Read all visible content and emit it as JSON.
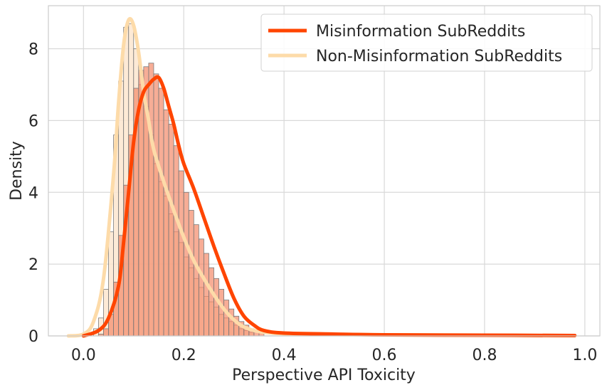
{
  "chart_data": {
    "type": "histogram+kde",
    "xlabel": "Perspective API Toxicity",
    "ylabel": "Density",
    "xlim": [
      -0.07,
      1.03
    ],
    "ylim": [
      0,
      9.2
    ],
    "xticks": [
      0.0,
      0.2,
      0.4,
      0.6,
      0.8,
      1.0
    ],
    "xtick_labels": [
      "0.0",
      "0.2",
      "0.4",
      "0.6",
      "0.8",
      "1.0"
    ],
    "yticks": [
      0,
      2,
      4,
      6,
      8
    ],
    "ytick_labels": [
      "0",
      "2",
      "4",
      "6",
      "8"
    ],
    "grid": true,
    "legend_position": "top-right",
    "bin_width": 0.01,
    "series": [
      {
        "name": "Non-Misinformation SubReddits",
        "line_color": "#FDDBA9",
        "bar_color": "#FDE6CF",
        "bin_starts": [
          0.02,
          0.03,
          0.04,
          0.05,
          0.06,
          0.07,
          0.08,
          0.09,
          0.1,
          0.11,
          0.12,
          0.13,
          0.14,
          0.15,
          0.16,
          0.17,
          0.18,
          0.19,
          0.2,
          0.21,
          0.22,
          0.23,
          0.24,
          0.25,
          0.26,
          0.27,
          0.28,
          0.29,
          0.3,
          0.31,
          0.32,
          0.33
        ],
        "densities": [
          0.2,
          0.5,
          1.3,
          2.9,
          5.6,
          7.1,
          8.6,
          8.7,
          8.0,
          7.0,
          6.4,
          5.6,
          4.8,
          4.3,
          3.9,
          3.4,
          2.9,
          2.6,
          2.2,
          1.9,
          1.6,
          1.35,
          1.1,
          0.95,
          0.8,
          0.6,
          0.5,
          0.4,
          0.3,
          0.2,
          0.15,
          0.1
        ],
        "kde_x": [
          -0.03,
          0.0,
          0.02,
          0.04,
          0.06,
          0.07,
          0.08,
          0.09,
          0.1,
          0.11,
          0.12,
          0.13,
          0.14,
          0.16,
          0.18,
          0.2,
          0.22,
          0.24,
          0.26,
          0.28,
          0.3,
          0.32,
          0.35,
          0.4,
          0.5,
          0.6,
          0.8,
          0.98
        ],
        "kde_y": [
          0.0,
          0.05,
          0.4,
          1.6,
          4.5,
          6.5,
          8.1,
          8.8,
          8.65,
          7.9,
          6.8,
          6.0,
          5.2,
          4.3,
          3.5,
          2.75,
          2.1,
          1.6,
          1.15,
          0.75,
          0.45,
          0.25,
          0.12,
          0.06,
          0.04,
          0.03,
          0.02,
          0.01
        ]
      },
      {
        "name": "Misinformation SubReddits",
        "line_color": "#FF4500",
        "bar_color": "#F48A6A",
        "bin_starts": [
          0.03,
          0.04,
          0.05,
          0.06,
          0.07,
          0.08,
          0.09,
          0.1,
          0.11,
          0.12,
          0.13,
          0.14,
          0.15,
          0.16,
          0.17,
          0.18,
          0.19,
          0.2,
          0.21,
          0.22,
          0.23,
          0.24,
          0.25,
          0.26,
          0.27,
          0.28,
          0.29,
          0.3,
          0.31,
          0.32,
          0.33,
          0.34,
          0.35
        ],
        "densities": [
          0.05,
          0.2,
          0.6,
          1.5,
          2.8,
          4.2,
          5.6,
          6.9,
          7.4,
          7.5,
          7.6,
          7.3,
          6.9,
          6.3,
          5.9,
          5.3,
          4.6,
          4.0,
          3.5,
          3.1,
          2.7,
          2.3,
          1.9,
          1.6,
          1.3,
          1.0,
          0.75,
          0.55,
          0.4,
          0.3,
          0.2,
          0.12,
          0.08
        ],
        "kde_x": [
          0.0,
          0.03,
          0.05,
          0.07,
          0.08,
          0.09,
          0.1,
          0.11,
          0.12,
          0.13,
          0.14,
          0.15,
          0.16,
          0.17,
          0.18,
          0.19,
          0.2,
          0.22,
          0.24,
          0.26,
          0.28,
          0.3,
          0.32,
          0.34,
          0.36,
          0.4,
          0.5,
          0.6,
          0.8,
          0.98
        ],
        "kde_y": [
          0.0,
          0.15,
          0.5,
          1.4,
          2.6,
          4.0,
          5.4,
          6.3,
          6.8,
          7.0,
          7.15,
          7.2,
          6.9,
          6.4,
          5.9,
          5.3,
          4.8,
          4.1,
          3.3,
          2.5,
          1.75,
          1.05,
          0.55,
          0.3,
          0.15,
          0.08,
          0.05,
          0.03,
          0.02,
          0.01
        ]
      }
    ]
  }
}
